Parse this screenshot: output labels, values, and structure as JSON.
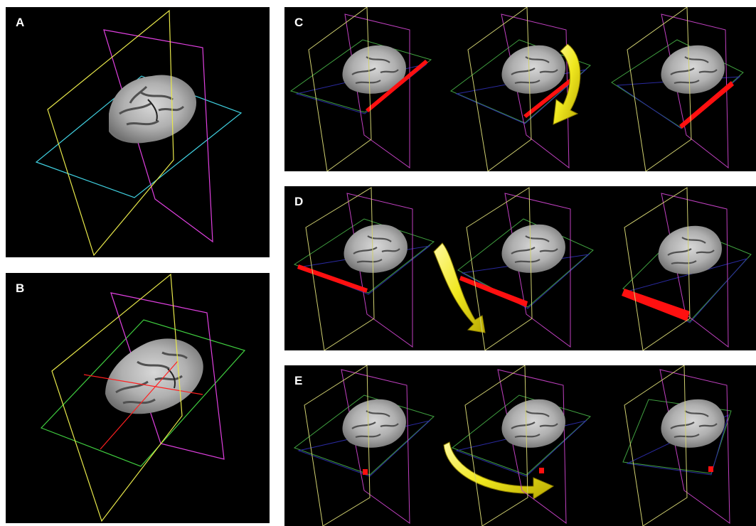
{
  "panels": {
    "a": {
      "label": "A"
    },
    "b": {
      "label": "B"
    },
    "c": {
      "label": "C"
    },
    "d": {
      "label": "D"
    },
    "e": {
      "label": "E"
    }
  },
  "colors": {
    "background": "#000000",
    "sagittal_plane": "#e8e84a",
    "coronal_plane": "#e040e0",
    "axial_plane_a": "#40d0e0",
    "axial_plane_b": "#40d040",
    "axial_plane_dark": "#2a2aa0",
    "axis_line": "#ff2020",
    "indicator_bar": "#ff1010",
    "rotation_arrow": "#f0e820",
    "brain_tissue": "#b9b9b9"
  },
  "icons": {
    "rotation_arrow": "curved-arrow-icon",
    "brain_slice": "brain-slice-icon"
  }
}
